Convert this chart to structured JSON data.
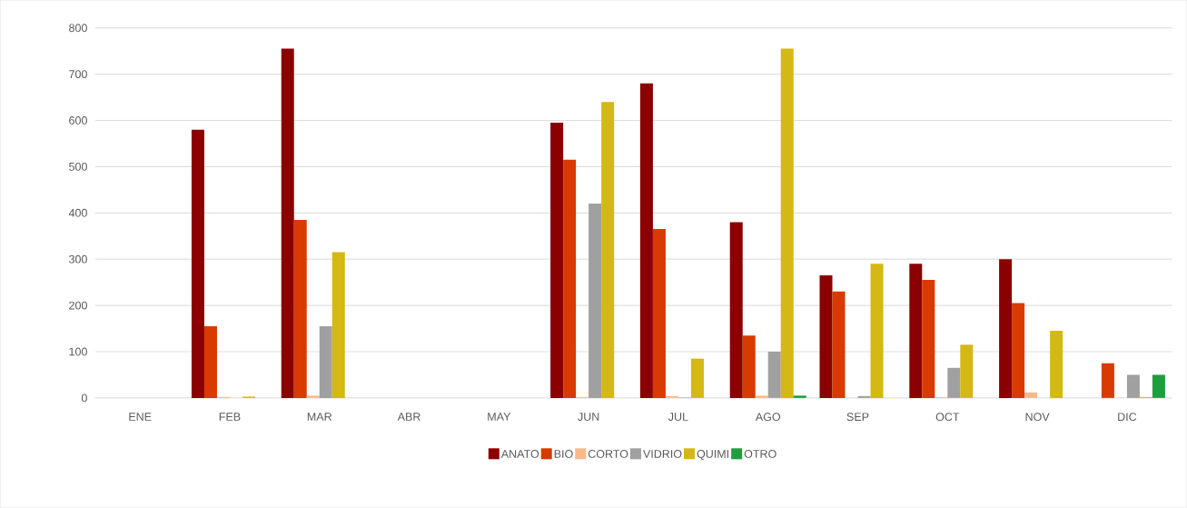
{
  "chart_data": {
    "type": "bar",
    "categories": [
      "ENE",
      "FEB",
      "MAR",
      "ABR",
      "MAY",
      "JUN",
      "JUL",
      "AGO",
      "SEP",
      "OCT",
      "NOV",
      "DIC"
    ],
    "series": [
      {
        "name": "ANATO",
        "color": "#8b0000",
        "values": [
          null,
          580,
          755,
          null,
          null,
          595,
          680,
          380,
          265,
          290,
          300,
          null
        ]
      },
      {
        "name": "BIO",
        "color": "#d83a00",
        "values": [
          null,
          155,
          385,
          null,
          null,
          515,
          365,
          135,
          230,
          255,
          205,
          75
        ]
      },
      {
        "name": "CORTO",
        "color": "#f9b98a",
        "values": [
          null,
          2,
          5,
          null,
          null,
          2,
          4,
          5,
          null,
          2,
          12,
          null
        ]
      },
      {
        "name": "VIDRIO",
        "color": "#a0a0a0",
        "values": [
          null,
          null,
          155,
          null,
          null,
          420,
          1,
          100,
          4,
          65,
          null,
          50
        ]
      },
      {
        "name": "QUIMI",
        "color": "#d4b814",
        "values": [
          null,
          3,
          315,
          null,
          null,
          640,
          85,
          755,
          290,
          115,
          145,
          2
        ]
      },
      {
        "name": "OTRO",
        "color": "#1e9e3e",
        "values": [
          null,
          null,
          null,
          null,
          null,
          null,
          null,
          5,
          null,
          null,
          null,
          50
        ]
      }
    ],
    "ylim": [
      0,
      800
    ],
    "yticks": [
      0,
      100,
      200,
      300,
      400,
      500,
      600,
      700,
      800
    ],
    "grid": "y",
    "legend": "bottom"
  }
}
